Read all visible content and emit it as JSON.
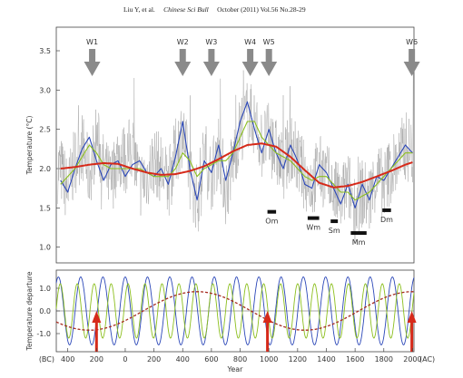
{
  "header": {
    "author": "Liu Y, et al.",
    "journal": "Chinese Sci Bull",
    "issue": "October (2011) Vol.56 No.28-29"
  },
  "chart_data": [
    {
      "type": "line",
      "ylabel": "Temperature (°C)",
      "ylim": [
        0.8,
        3.8
      ],
      "yticks": [
        1.0,
        1.5,
        2.0,
        2.5,
        3.0,
        3.5
      ],
      "ytick_labels": [
        "1.0",
        "1.5",
        "2.0",
        "2.5",
        "3.0",
        "3.5"
      ],
      "xlim": [
        -480,
        2010
      ],
      "grid": false,
      "series": [
        {
          "color": "#999999",
          "style": "raw annual temperature reconstruction (grey)",
          "x": [
            -450,
            -400,
            -350,
            -300,
            -250,
            -200,
            -150,
            -100,
            -50,
            0,
            50,
            100,
            150,
            200,
            250,
            300,
            350,
            400,
            450,
            500,
            550,
            600,
            650,
            700,
            750,
            800,
            850,
            900,
            950,
            1000,
            1050,
            1100,
            1150,
            1200,
            1250,
            1300,
            1350,
            1400,
            1450,
            1500,
            1550,
            1600,
            1650,
            1700,
            1750,
            1800,
            1850,
            1900,
            1950,
            2000
          ],
          "y": [
            2.0,
            1.7,
            2.1,
            2.3,
            1.9,
            2.4,
            2.0,
            1.8,
            2.2,
            2.1,
            2.3,
            1.8,
            1.9,
            2.1,
            2.0,
            1.8,
            2.2,
            2.5,
            1.9,
            1.6,
            2.2,
            1.9,
            2.3,
            1.7,
            2.1,
            2.5,
            2.7,
            2.6,
            2.3,
            2.4,
            2.2,
            2.0,
            2.3,
            2.1,
            1.9,
            1.8,
            2.0,
            1.9,
            1.7,
            1.6,
            1.8,
            1.5,
            1.7,
            1.6,
            1.9,
            1.8,
            2.0,
            2.1,
            2.3,
            2.2
          ]
        },
        {
          "color": "#2b47b8",
          "style": "blue filtered curve",
          "x": [
            -450,
            -400,
            -350,
            -300,
            -250,
            -200,
            -150,
            -100,
            -50,
            0,
            50,
            100,
            150,
            200,
            250,
            300,
            350,
            400,
            450,
            500,
            550,
            600,
            650,
            700,
            750,
            800,
            850,
            900,
            950,
            1000,
            1050,
            1100,
            1150,
            1200,
            1250,
            1300,
            1350,
            1400,
            1450,
            1500,
            1550,
            1600,
            1650,
            1700,
            1750,
            1800,
            1850,
            1900,
            1950,
            2000
          ],
          "y": [
            1.85,
            1.7,
            2.0,
            2.25,
            2.4,
            2.1,
            1.85,
            2.05,
            2.1,
            1.9,
            2.05,
            2.1,
            1.95,
            1.9,
            2.0,
            1.8,
            2.15,
            2.6,
            2.0,
            1.6,
            2.1,
            1.95,
            2.3,
            1.85,
            2.2,
            2.6,
            2.85,
            2.5,
            2.2,
            2.5,
            2.2,
            2.0,
            2.3,
            2.1,
            1.8,
            1.75,
            2.05,
            1.95,
            1.75,
            1.55,
            1.8,
            1.5,
            1.8,
            1.6,
            1.9,
            1.85,
            2.0,
            2.15,
            2.3,
            2.2
          ]
        },
        {
          "color": "#8cbf1e",
          "style": "green filtered curve",
          "x": [
            -450,
            -400,
            -350,
            -300,
            -250,
            -200,
            -150,
            -100,
            -50,
            0,
            50,
            100,
            150,
            200,
            250,
            300,
            350,
            400,
            450,
            500,
            550,
            600,
            650,
            700,
            750,
            800,
            850,
            900,
            950,
            1000,
            1050,
            1100,
            1150,
            1200,
            1250,
            1300,
            1350,
            1400,
            1450,
            1500,
            1550,
            1600,
            1650,
            1700,
            1750,
            1800,
            1850,
            1900,
            1950,
            2000
          ],
          "y": [
            1.8,
            1.9,
            2.0,
            2.15,
            2.3,
            2.2,
            2.05,
            2.0,
            2.0,
            2.0,
            2.0,
            2.0,
            1.95,
            1.9,
            1.9,
            1.9,
            2.0,
            2.2,
            2.1,
            1.9,
            2.0,
            2.05,
            2.1,
            2.1,
            2.2,
            2.4,
            2.6,
            2.6,
            2.4,
            2.3,
            2.2,
            2.15,
            2.1,
            2.0,
            1.9,
            1.85,
            1.9,
            1.9,
            1.8,
            1.7,
            1.7,
            1.6,
            1.65,
            1.7,
            1.8,
            1.9,
            2.0,
            2.1,
            2.2,
            2.2
          ]
        },
        {
          "color": "#d62a1a",
          "style": "red long-term trend",
          "x": [
            -450,
            -350,
            -250,
            -150,
            -50,
            50,
            150,
            250,
            350,
            450,
            550,
            650,
            750,
            850,
            950,
            1050,
            1150,
            1250,
            1350,
            1450,
            1550,
            1650,
            1750,
            1850,
            1950,
            2000
          ],
          "y": [
            2.0,
            2.02,
            2.05,
            2.07,
            2.06,
            2.0,
            1.95,
            1.92,
            1.93,
            1.97,
            2.03,
            2.12,
            2.22,
            2.3,
            2.32,
            2.28,
            2.15,
            1.98,
            1.82,
            1.76,
            1.78,
            1.83,
            1.9,
            1.97,
            2.05,
            2.08
          ]
        }
      ],
      "annotations": [
        {
          "label": "W1",
          "x": -230
        },
        {
          "label": "W2",
          "x": 400
        },
        {
          "label": "W3",
          "x": 600
        },
        {
          "label": "W4",
          "x": 870
        },
        {
          "label": "W5",
          "x": 1000
        },
        {
          "label": "W6",
          "x": 1995
        }
      ],
      "cold_periods": [
        {
          "label": "Om",
          "x": [
            990,
            1050
          ],
          "y": 1.45
        },
        {
          "label": "Wm",
          "x": [
            1270,
            1350
          ],
          "y": 1.37
        },
        {
          "label": "Sm",
          "x": [
            1430,
            1480
          ],
          "y": 1.33
        },
        {
          "label": "Mm",
          "x": [
            1570,
            1680
          ],
          "y": 1.18
        },
        {
          "label": "Dm",
          "x": [
            1790,
            1850
          ],
          "y": 1.47
        }
      ]
    },
    {
      "type": "line",
      "ylabel": "Temperature departure",
      "ylim": [
        -1.8,
        1.8
      ],
      "yticks": [
        1.0,
        0.0,
        -1.0
      ],
      "ytick_labels": [
        "1.0",
        "0.0",
        "-1.0"
      ],
      "xlabel": "Year",
      "xlim": [
        -480,
        2010
      ],
      "xticks": [
        -400,
        -200,
        0,
        200,
        400,
        600,
        800,
        1000,
        1200,
        1400,
        1600,
        1800,
        2000
      ],
      "xtick_labels": [
        "400",
        "200",
        "0",
        "200",
        "400",
        "600",
        "800",
        "1000",
        "1200",
        "1400",
        "1600",
        "1800",
        "2000"
      ],
      "x_prefix": "(BC)",
      "x_suffix": "(AC)",
      "series": [
        {
          "color": "#2b47b8",
          "style": "blue oscillation",
          "amplitude": 1.5,
          "period": 155,
          "phase": 0
        },
        {
          "color": "#8cbf1e",
          "style": "green oscillation",
          "amplitude": 1.2,
          "period": 118,
          "phase": 20
        },
        {
          "color": "#a52a1e",
          "style": "dashed long-period oscillation",
          "amplitude": 0.85,
          "period": 1500,
          "phase": 2000
        }
      ],
      "arrows": [
        -200,
        990,
        1995
      ]
    }
  ]
}
